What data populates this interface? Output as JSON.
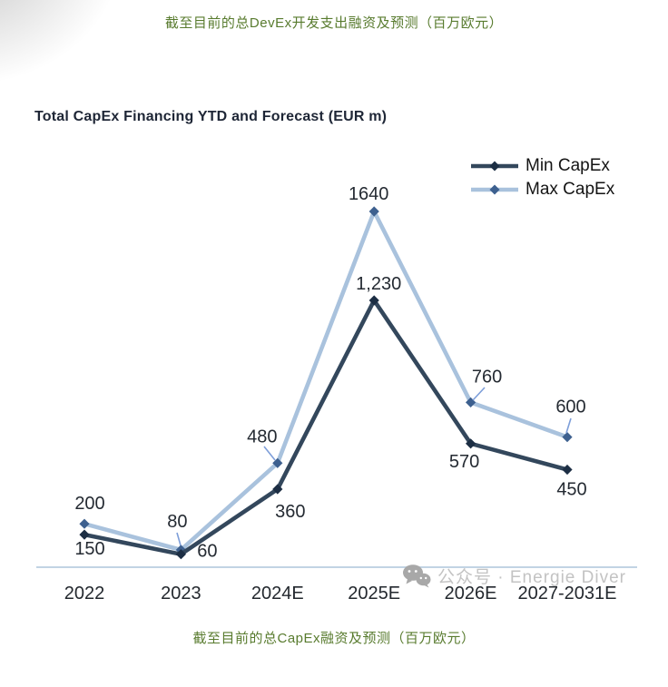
{
  "page": {
    "caption_top": "截至目前的总DevEx开发支出融资及预测（百万欧元）",
    "caption_bottom": "截至目前的总CapEx融资及预测（百万欧元）",
    "caption_color": "#587b2e",
    "watermark_text": "公众号 · Energie Diver"
  },
  "chart_data": {
    "type": "line",
    "title": "Total CapEx Financing YTD and Forecast (EUR m)",
    "categories": [
      "2022",
      "2023",
      "2024E",
      "2025E",
      "2026E",
      "2027-2031E"
    ],
    "series": [
      {
        "name": "Min CapEx",
        "values": [
          150,
          60,
          360,
          1230,
          570,
          450
        ],
        "labels": [
          "150",
          "60",
          "360",
          "1,230",
          "570",
          "450"
        ],
        "color": "#33475c",
        "marker_color": "#1c2e44"
      },
      {
        "name": "Max CapEx",
        "values": [
          200,
          80,
          480,
          1640,
          760,
          600
        ],
        "labels": [
          "200",
          "80",
          "480",
          "1640",
          "760",
          "600"
        ],
        "color": "#a9c2dd",
        "marker_color": "#3d608f"
      }
    ],
    "ylim": [
      0,
      1750
    ],
    "xlabel": "",
    "ylabel": "",
    "grid": false,
    "legend_position": "top-right",
    "axis_line_color": "#c2d4e4",
    "leader_line_color": "#7d9ed9"
  }
}
